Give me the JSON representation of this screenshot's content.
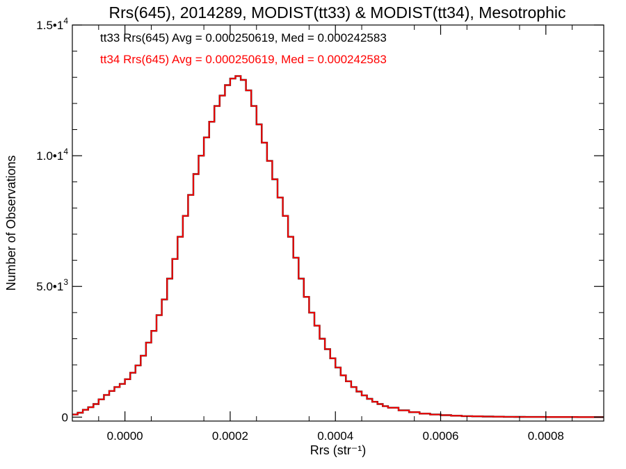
{
  "chart_data": {
    "type": "line",
    "title": "Rrs(645), 2014289, MODIST(tt33) & MODIST(tt34), Mesotrophic",
    "xlabel": "Rrs (str⁻¹)",
    "ylabel": "Number of Observations",
    "xlim": [
      -0.0001,
      0.00091
    ],
    "ylim": [
      -150,
      15000
    ],
    "x_ticks": [
      0.0,
      0.0002,
      0.0004,
      0.0006,
      0.0008
    ],
    "x_tick_labels": [
      "0.0000",
      "0.0002",
      "0.0004",
      "0.0006",
      "0.0008"
    ],
    "y_ticks": [
      0,
      5000,
      10000,
      15000
    ],
    "y_tick_labels": [
      {
        "mant": "0",
        "exp": ""
      },
      {
        "mant": "5.0•1",
        "exp": "3"
      },
      {
        "mant": "1.0•1",
        "exp": "4"
      },
      {
        "mant": "1.5•1",
        "exp": "4"
      }
    ],
    "step": true,
    "grid": false,
    "annotations": [
      {
        "text": "tt33 Rrs(645) Avg = 0.000250619, Med = 0.000242583",
        "color": "#000000"
      },
      {
        "text": "tt34 Rrs(645) Avg = 0.000250619, Med = 0.000242583",
        "color": "#ff0000"
      }
    ],
    "x": [
      -0.0001,
      -9e-05,
      -8e-05,
      -7e-05,
      -6e-05,
      -5e-05,
      -4e-05,
      -3e-05,
      -2e-05,
      -1e-05,
      0.0,
      1e-05,
      2e-05,
      3e-05,
      4e-05,
      5e-05,
      6e-05,
      7e-05,
      8e-05,
      9e-05,
      0.0001,
      0.00011,
      0.00012,
      0.00013,
      0.00014,
      0.00015,
      0.00016,
      0.00017,
      0.00018,
      0.00019,
      0.0002,
      0.00021,
      0.00022,
      0.00023,
      0.00024,
      0.00025,
      0.00026,
      0.00027,
      0.00028,
      0.00029,
      0.0003,
      0.00031,
      0.00032,
      0.00033,
      0.00034,
      0.00035,
      0.00036,
      0.00037,
      0.00038,
      0.00039,
      0.0004,
      0.00041,
      0.00042,
      0.00043,
      0.00044,
      0.00045,
      0.00046,
      0.00047,
      0.00048,
      0.00049,
      0.0005,
      0.00052,
      0.00054,
      0.00056,
      0.00058,
      0.0006,
      0.00062,
      0.00064,
      0.00066,
      0.00068,
      0.0007,
      0.00072,
      0.00074,
      0.00076,
      0.00078,
      0.0008,
      0.00083,
      0.00086,
      0.0009
    ],
    "series": [
      {
        "name": "tt33",
        "color": "#000000",
        "values": [
          100,
          170,
          280,
          380,
          500,
          680,
          850,
          1000,
          1150,
          1270,
          1450,
          1700,
          1980,
          2350,
          2850,
          3300,
          3900,
          4500,
          5300,
          6050,
          6900,
          7700,
          8500,
          9300,
          10000,
          10700,
          11300,
          11900,
          12300,
          12700,
          12950,
          13050,
          12900,
          12500,
          11900,
          11200,
          10500,
          9800,
          9100,
          8400,
          7700,
          6900,
          6100,
          5300,
          4600,
          4000,
          3500,
          3000,
          2600,
          2250,
          1900,
          1600,
          1370,
          1150,
          980,
          830,
          700,
          590,
          500,
          420,
          360,
          260,
          190,
          135,
          100,
          75,
          55,
          40,
          30,
          22,
          17,
          13,
          10,
          8,
          6,
          5,
          3,
          2,
          1
        ]
      },
      {
        "name": "tt34",
        "color": "#ff0000",
        "values": [
          100,
          170,
          280,
          380,
          500,
          680,
          850,
          1000,
          1150,
          1270,
          1450,
          1700,
          1980,
          2350,
          2850,
          3300,
          3900,
          4500,
          5300,
          6050,
          6900,
          7700,
          8500,
          9300,
          10000,
          10700,
          11300,
          11900,
          12300,
          12700,
          12950,
          13050,
          12900,
          12500,
          11900,
          11200,
          10500,
          9800,
          9100,
          8400,
          7700,
          6900,
          6100,
          5300,
          4600,
          4000,
          3500,
          3000,
          2600,
          2250,
          1900,
          1600,
          1370,
          1150,
          980,
          830,
          700,
          590,
          500,
          420,
          360,
          260,
          190,
          135,
          100,
          75,
          55,
          40,
          30,
          22,
          17,
          13,
          10,
          8,
          6,
          5,
          3,
          2,
          1
        ]
      }
    ]
  }
}
